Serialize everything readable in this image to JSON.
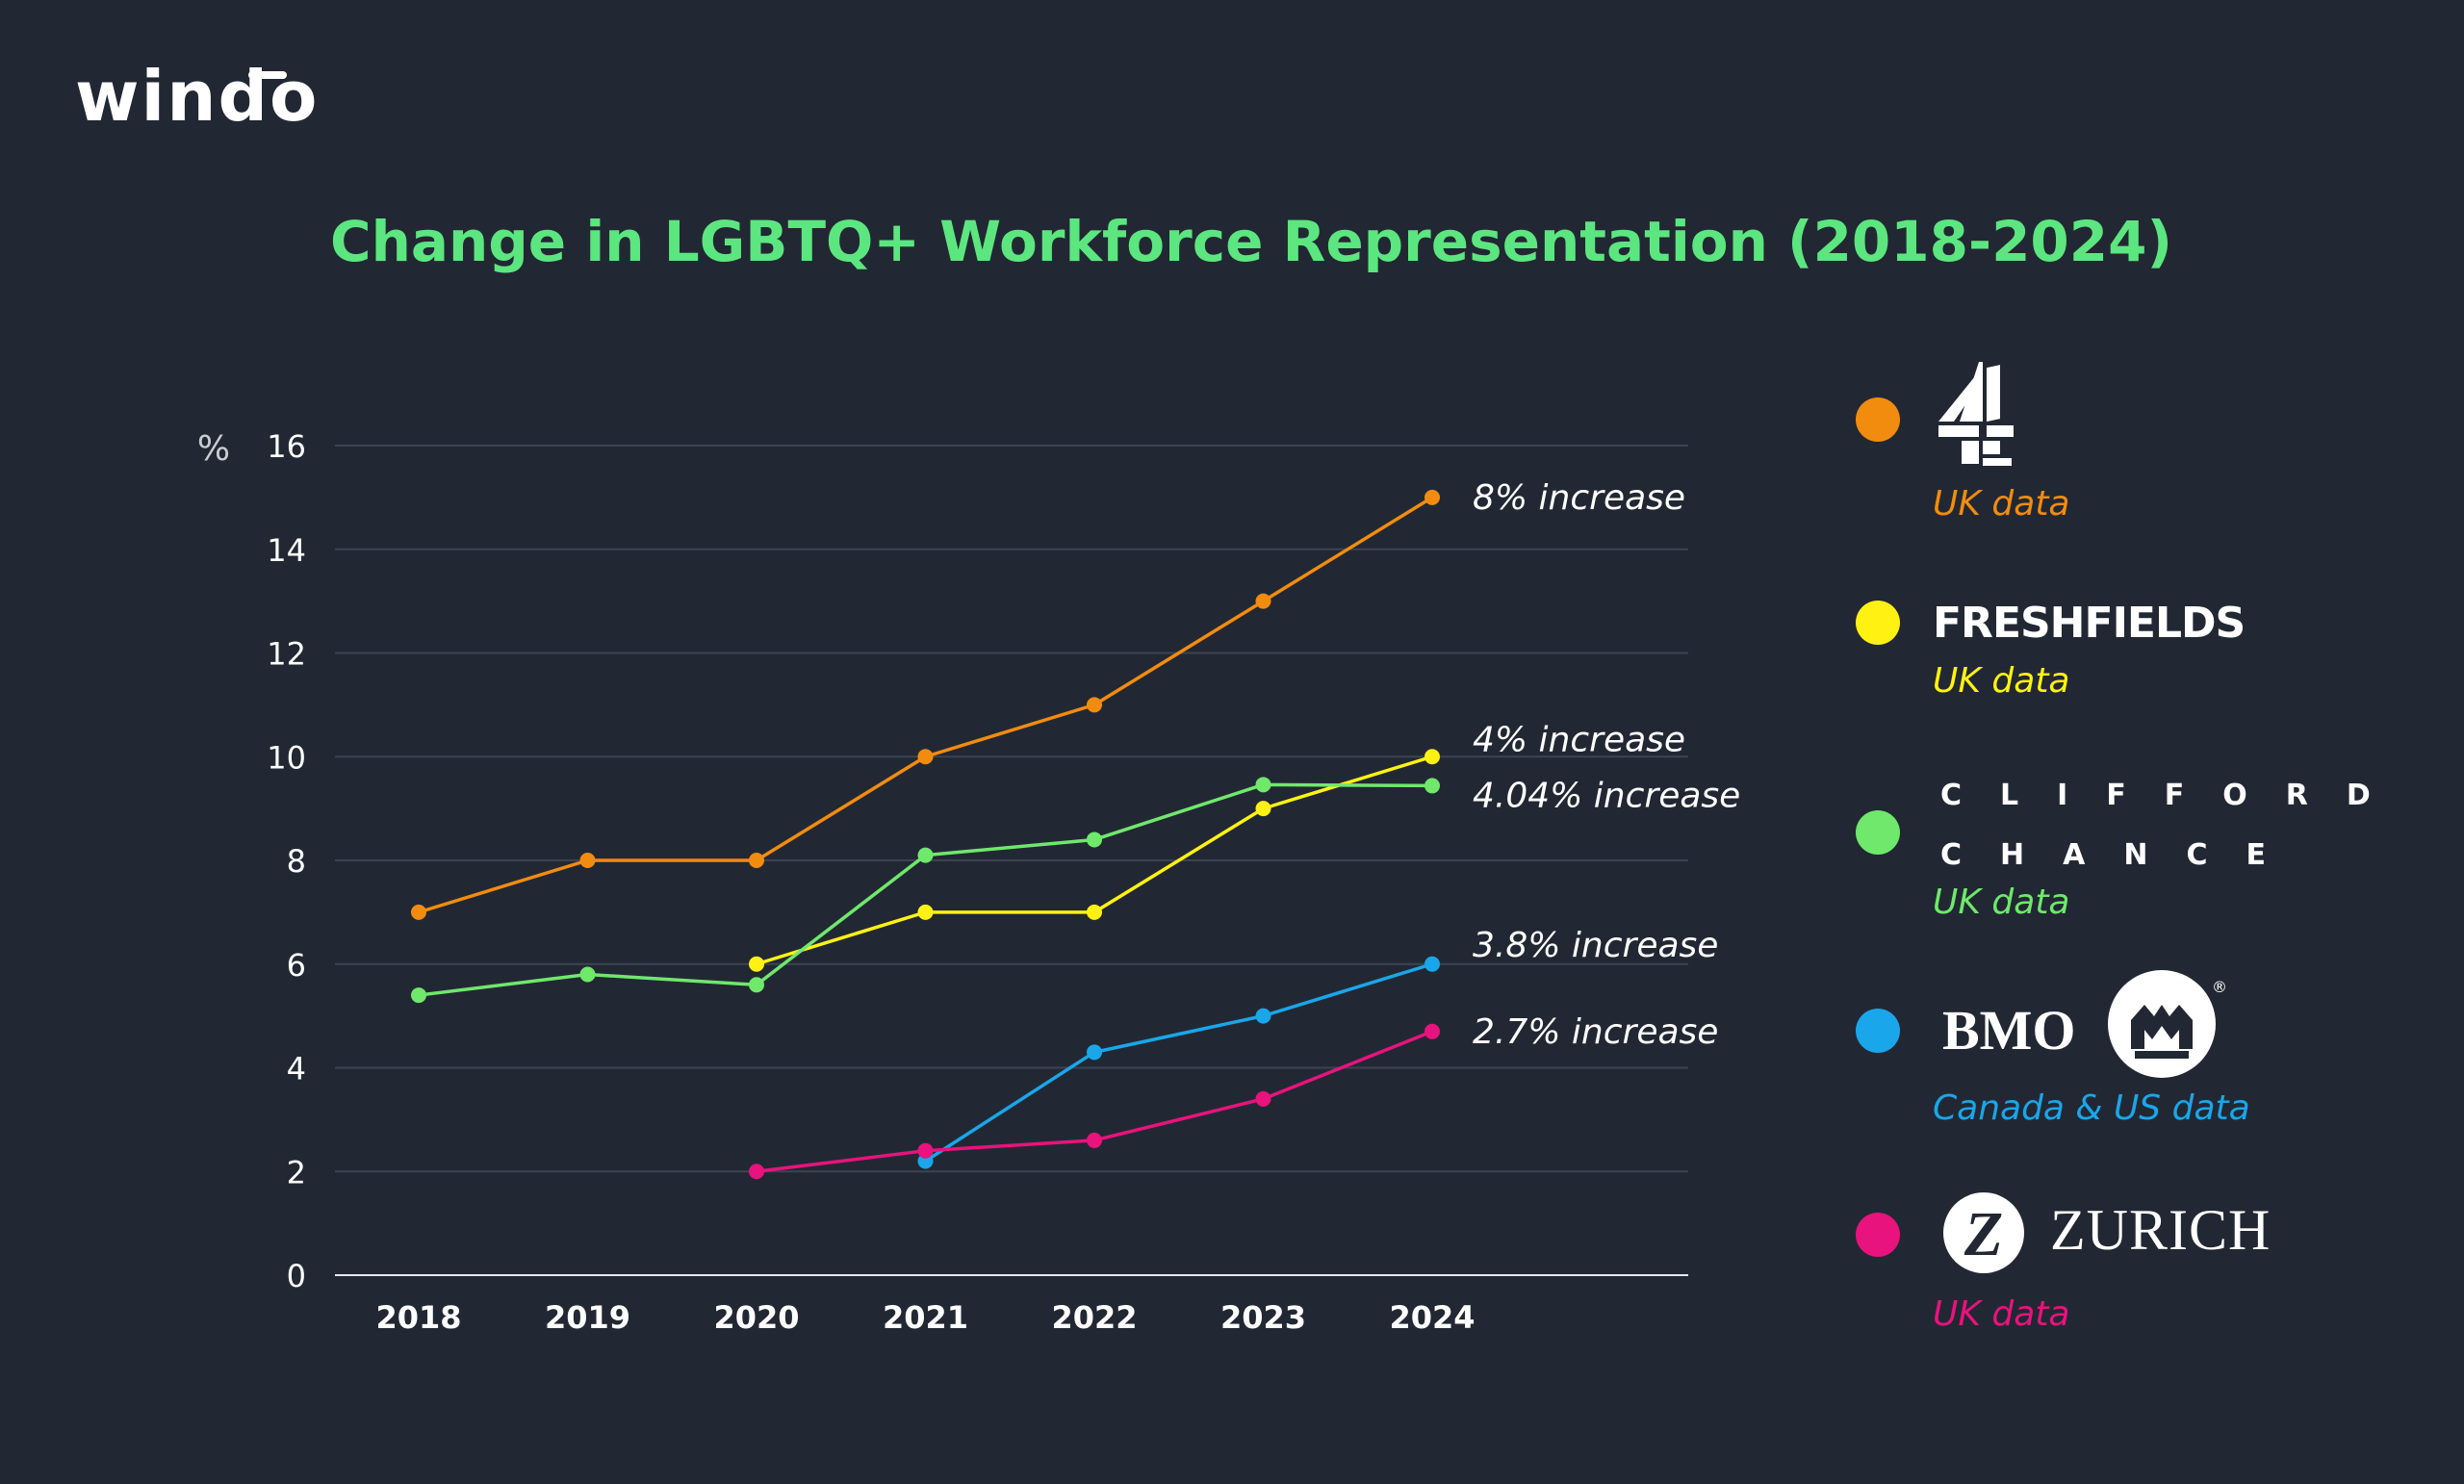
{
  "brand": {
    "logo_text": "windo"
  },
  "chart_data": {
    "type": "line",
    "title": "Change in LGBTQ+ Workforce Representation (2018-2024)",
    "ylabel": "%",
    "xlabel": "",
    "x": [
      2018,
      2019,
      2020,
      2021,
      2022,
      2023,
      2024
    ],
    "x_tick_labels": [
      "2018",
      "2019",
      "2020",
      "2021",
      "2022",
      "2023",
      "2024"
    ],
    "ylim": [
      0,
      16
    ],
    "y_ticks": [
      0,
      2,
      4,
      6,
      8,
      10,
      12,
      14,
      16
    ],
    "grid": true,
    "legend_position": "right",
    "series": [
      {
        "name": "Channel 4",
        "color": "#f28c0f",
        "values": [
          7,
          8,
          8,
          10,
          11,
          13,
          15
        ],
        "annotation": "8% increase"
      },
      {
        "name": "Freshfields",
        "color": "#fff212",
        "values": [
          null,
          null,
          6,
          7,
          7,
          9,
          10
        ],
        "annotation": "4% increase"
      },
      {
        "name": "Clifford Chance",
        "color": "#6fe86c",
        "values": [
          5.4,
          5.8,
          5.6,
          8.1,
          8.4,
          9.46,
          9.44
        ],
        "annotation": "4.04% increase"
      },
      {
        "name": "BMO",
        "color": "#1aa6ea",
        "values": [
          null,
          null,
          null,
          2.2,
          4.3,
          5,
          6
        ],
        "annotation": "3.8% increase"
      },
      {
        "name": "Zurich",
        "color": "#e8137d",
        "values": [
          null,
          null,
          2,
          2.4,
          2.6,
          3.4,
          4.7
        ],
        "annotation": "2.7% increase"
      }
    ]
  },
  "legend": {
    "channel4": {
      "sub": "UK data",
      "color": "#f28c0f"
    },
    "freshfields": {
      "logo": "FRESHFIELDS",
      "sub": "UK data",
      "color": "#fff212"
    },
    "clifford": {
      "logo_line1": "CLIFFORD",
      "logo_line2": "CHANCE",
      "sub": "UK data",
      "color": "#6fe86c"
    },
    "bmo": {
      "logo": "BMO",
      "registered": "®",
      "sub": "Canada & US data",
      "color": "#1aa6ea"
    },
    "zurich": {
      "logo": "ZURICH",
      "logo_mark": "Z",
      "sub": "UK data",
      "color": "#e8137d"
    }
  }
}
